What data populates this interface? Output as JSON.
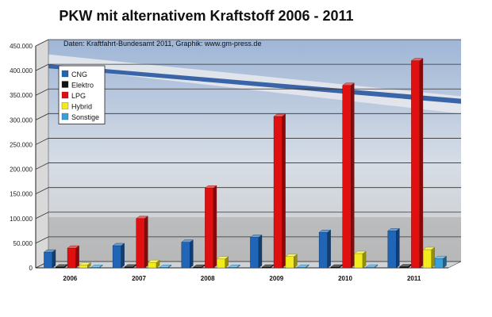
{
  "chart_data": {
    "type": "bar",
    "title": "PKW mit alternativem Kraftstoff 2006 - 2011",
    "subtitle": "Daten: Kraftfahrt-Bundesamt 2011, Graphik: www.gm-press.de",
    "xlabel": "",
    "ylabel": "",
    "categories": [
      "2006",
      "2007",
      "2008",
      "2009",
      "2010",
      "2011"
    ],
    "ylim": [
      0,
      450000
    ],
    "yticks": [
      "0",
      "50.000",
      "100.000",
      "150.000",
      "200.000",
      "250.000",
      "300.000",
      "350.000",
      "400.000",
      "450.000"
    ],
    "legend_position": "top-left",
    "grid": true,
    "series": [
      {
        "name": "CNG",
        "color": "#1f66b8",
        "values": [
          32000,
          45000,
          52000,
          62000,
          72000,
          75000
        ]
      },
      {
        "name": "Elektro",
        "color": "#111111",
        "values": [
          1900,
          1800,
          1400,
          1500,
          1600,
          2300
        ]
      },
      {
        "name": "LPG",
        "color": "#e01010",
        "values": [
          40000,
          100000,
          162000,
          307000,
          370000,
          420000
        ]
      },
      {
        "name": "Hybrid",
        "color": "#f2ec1e",
        "values": [
          6000,
          11000,
          18000,
          23000,
          29000,
          37000
        ]
      },
      {
        "name": "Sonstige",
        "color": "#3aa0dc",
        "values": [
          1000,
          1200,
          1200,
          1300,
          1500,
          19000
        ]
      }
    ]
  }
}
